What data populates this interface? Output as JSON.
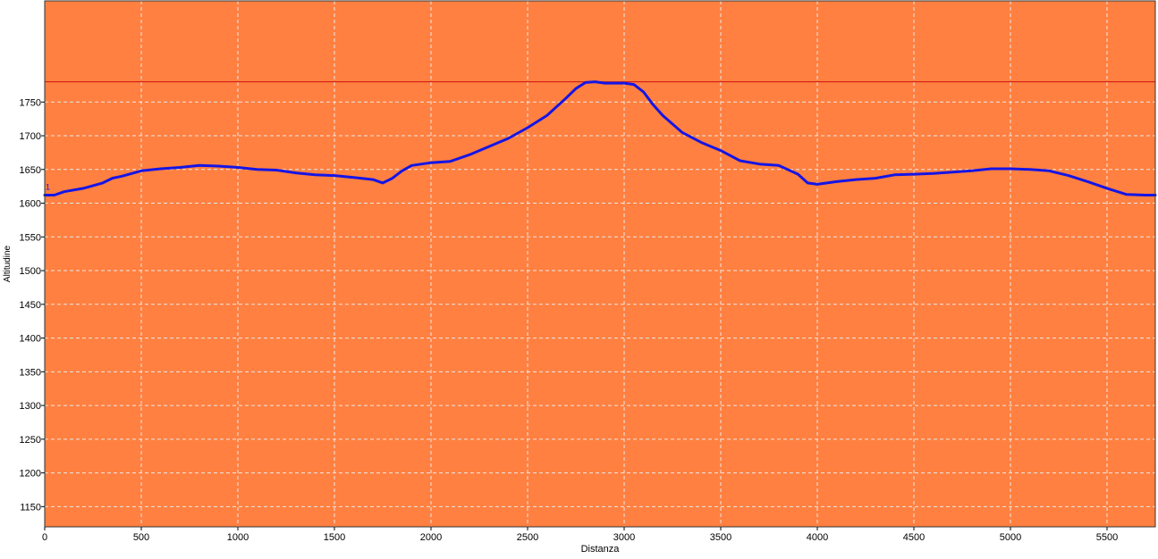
{
  "chart_data": {
    "type": "line",
    "title": "",
    "xlabel": "Distanza",
    "ylabel": "Altitudine",
    "xlim": [
      0,
      5750
    ],
    "ylim": [
      1120,
      1900
    ],
    "grid": true,
    "legend": "none",
    "x_ticks": [
      0,
      500,
      1000,
      1500,
      2000,
      2500,
      3000,
      3500,
      4000,
      4500,
      5000,
      5500
    ],
    "y_ticks": [
      1150,
      1200,
      1250,
      1300,
      1350,
      1400,
      1450,
      1500,
      1550,
      1600,
      1650,
      1700,
      1750
    ],
    "max_line": 1780,
    "start_marker_label": "1",
    "colors": {
      "plot_background": "#FF8040",
      "line": "#1515E6",
      "max_line": "#CC1111",
      "grid": "#E8E8E8"
    },
    "series": [
      {
        "x": [
          0,
          50,
          100,
          200,
          300,
          350,
          400,
          500,
          600,
          700,
          800,
          900,
          1000,
          1100,
          1200,
          1300,
          1400,
          1500,
          1600,
          1700,
          1750,
          1800,
          1850,
          1900,
          2000,
          2100,
          2200,
          2300,
          2400,
          2500,
          2600,
          2700,
          2750,
          2800,
          2850,
          2900,
          3000,
          3050,
          3100,
          3150,
          3200,
          3300,
          3400,
          3500,
          3600,
          3700,
          3800,
          3900,
          3950,
          4000,
          4100,
          4200,
          4300,
          4400,
          4500,
          4600,
          4700,
          4800,
          4900,
          5000,
          5100,
          5200,
          5300,
          5400,
          5500,
          5600,
          5700,
          5750
        ],
        "y": [
          1612,
          1612,
          1617,
          1622,
          1630,
          1637,
          1640,
          1648,
          1651,
          1653,
          1656,
          1655,
          1653,
          1650,
          1649,
          1645,
          1642,
          1641,
          1638,
          1635,
          1630,
          1637,
          1648,
          1656,
          1660,
          1662,
          1672,
          1684,
          1696,
          1712,
          1730,
          1756,
          1770,
          1779,
          1780,
          1778,
          1778,
          1776,
          1765,
          1746,
          1730,
          1705,
          1690,
          1678,
          1663,
          1658,
          1656,
          1643,
          1630,
          1628,
          1632,
          1635,
          1637,
          1642,
          1643,
          1644,
          1646,
          1648,
          1651,
          1651,
          1650,
          1648,
          1641,
          1632,
          1622,
          1613,
          1612,
          1612
        ]
      }
    ]
  }
}
